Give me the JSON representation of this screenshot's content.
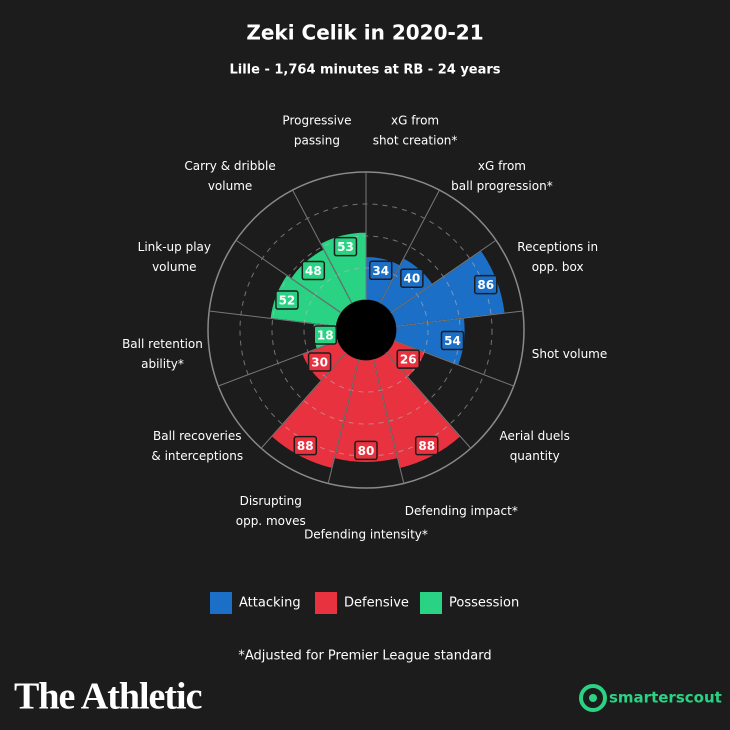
{
  "chart_data": {
    "type": "polar_bar",
    "title": "Zeki Celik in 2020-21",
    "subtitle": "Lille - 1,764 minutes at RB - 24 years",
    "categories": [
      [
        "xG from",
        "shot creation*"
      ],
      [
        "xG from",
        "ball progression*"
      ],
      [
        "Receptions in",
        "opp. box"
      ],
      [
        "Shot volume"
      ],
      [
        "Aerial duels",
        "quantity"
      ],
      [
        "Defending impact*"
      ],
      [
        "Defending intensity*"
      ],
      [
        "Disrupting",
        "opp. moves"
      ],
      [
        "Ball recoveries",
        "& interceptions"
      ],
      [
        "Ball retention",
        "ability*"
      ],
      [
        "Link-up play",
        "volume"
      ],
      [
        "Carry & dribble",
        "volume"
      ],
      [
        "Progressive",
        "passing"
      ]
    ],
    "series": [
      {
        "name": "Attacking",
        "color": "#1b6fc6",
        "values": [
          34,
          40,
          86,
          54,
          null,
          null,
          null,
          null,
          null,
          null,
          null,
          null,
          null
        ]
      },
      {
        "name": "Defensive",
        "color": "#e8323f",
        "values": [
          null,
          null,
          null,
          null,
          26,
          88,
          80,
          88,
          30,
          null,
          null,
          null,
          null
        ]
      },
      {
        "name": "Possession",
        "color": "#2ad383",
        "values": [
          null,
          null,
          null,
          null,
          null,
          null,
          null,
          null,
          null,
          18,
          52,
          48,
          53
        ]
      }
    ],
    "rlim": [
      0,
      100
    ],
    "rticks": [
      25,
      50,
      75,
      100
    ],
    "footnote": "*Adjusted for Premier League standard"
  },
  "branding": {
    "publisher": "The Athletic",
    "provider": "smarterscout"
  }
}
